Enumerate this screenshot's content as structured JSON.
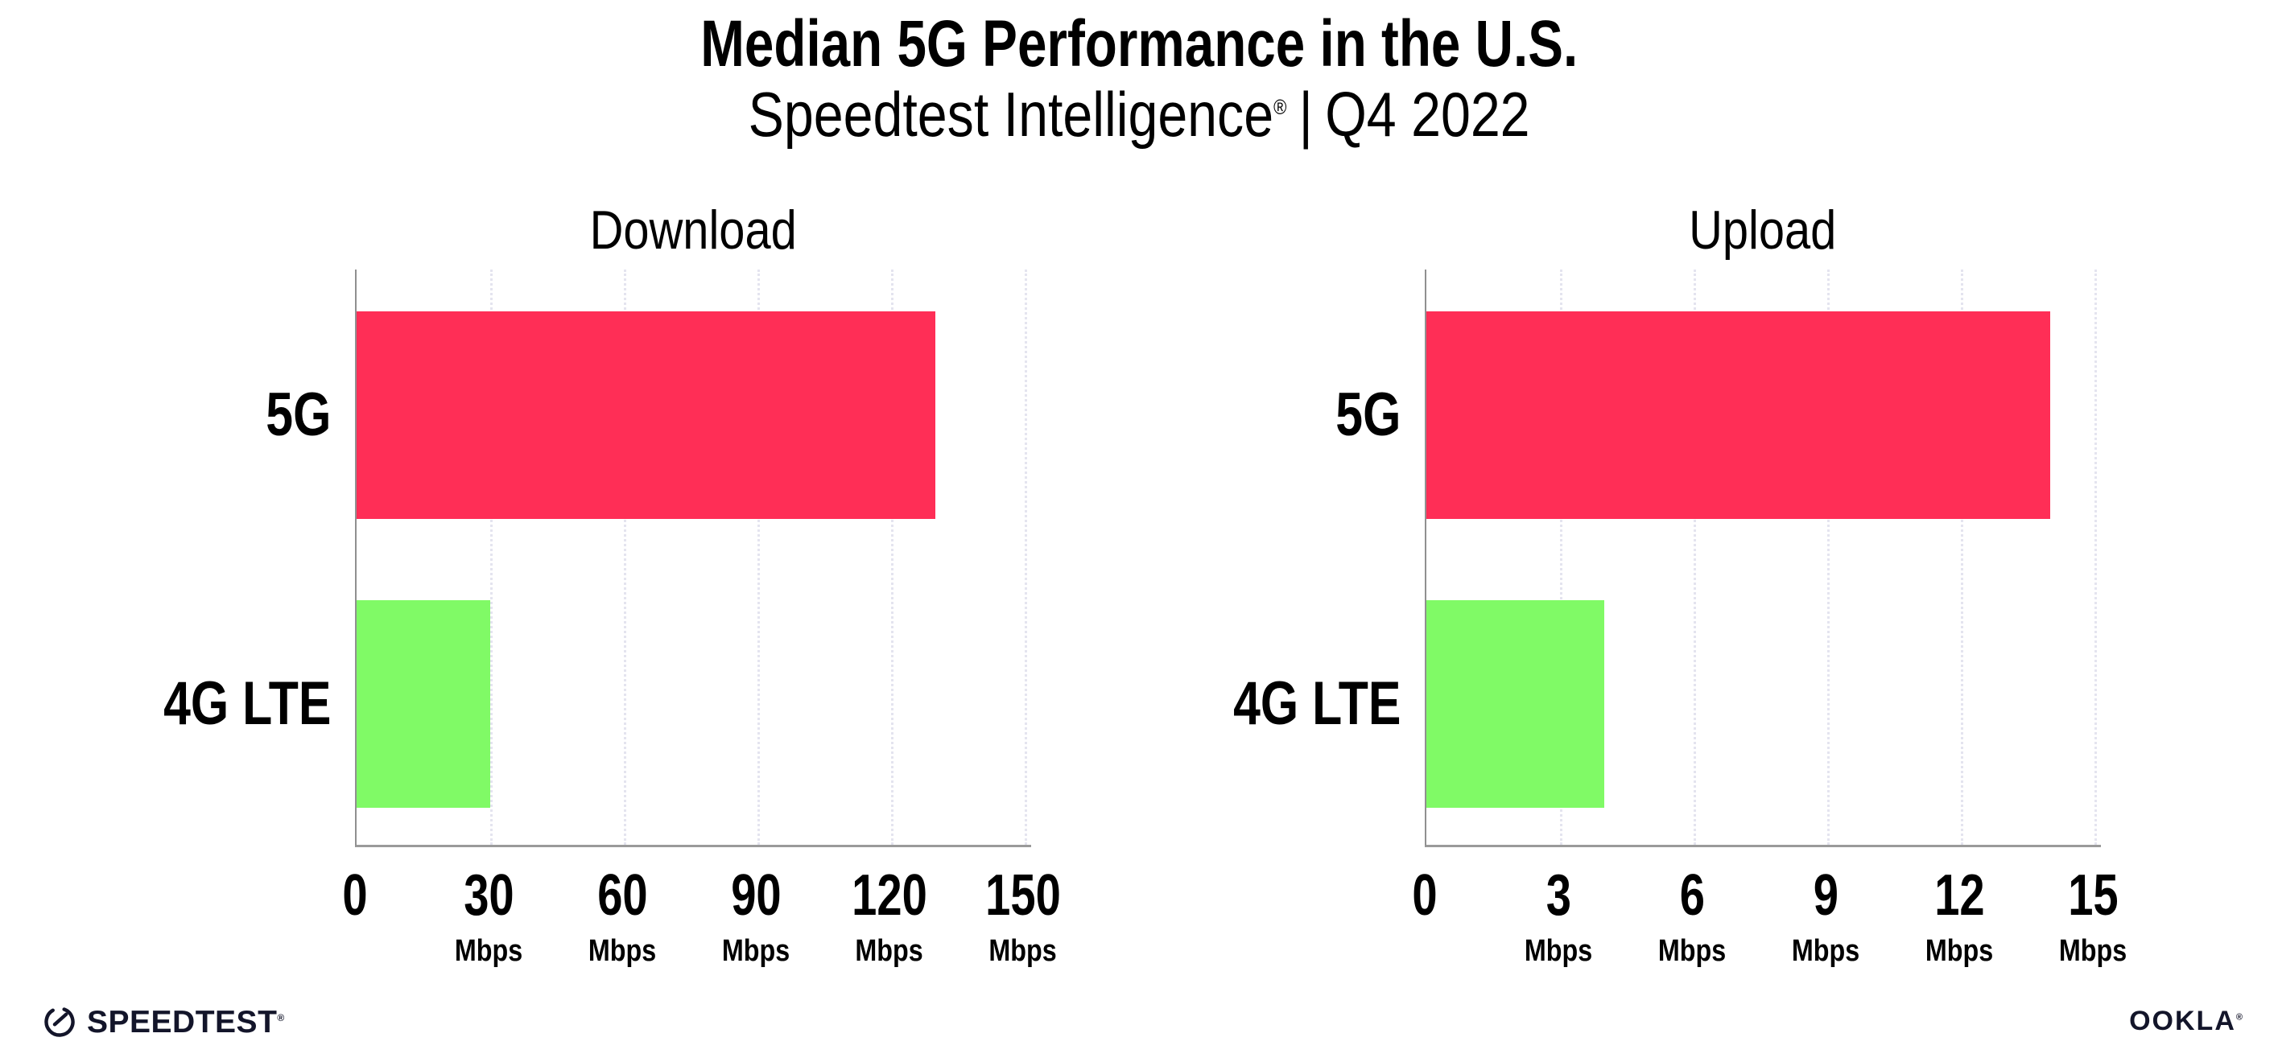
{
  "page": {
    "background": "#ffffff"
  },
  "header": {
    "title": "Median 5G Performance in the U.S.",
    "subtitle": {
      "brand": "Speedtest Intelligence",
      "registered": "®",
      "separator": "|",
      "period": "Q4 2022"
    }
  },
  "chart_data": [
    {
      "type": "bar",
      "orientation": "horizontal",
      "title": "Download",
      "categories": [
        "5G",
        "4G LTE"
      ],
      "values": [
        130,
        30
      ],
      "unit": "Mbps",
      "xlabel": "",
      "ylabel": "",
      "xlim": [
        0,
        150
      ],
      "xticks": [
        0,
        30,
        60,
        90,
        120,
        150
      ],
      "xtick_unit": "Mbps",
      "bar_colors": [
        "#FF2E56",
        "#80FA66"
      ],
      "grid": "vertical-dotted",
      "legend": "none"
    },
    {
      "type": "bar",
      "orientation": "horizontal",
      "title": "Upload",
      "categories": [
        "5G",
        "4G LTE"
      ],
      "values": [
        14,
        4
      ],
      "unit": "Mbps",
      "xlabel": "",
      "ylabel": "",
      "xlim": [
        0,
        15
      ],
      "xticks": [
        0,
        3,
        6,
        9,
        12,
        15
      ],
      "xtick_unit": "Mbps",
      "bar_colors": [
        "#FF2E56",
        "#80FA66"
      ],
      "grid": "vertical-dotted",
      "legend": "none"
    }
  ],
  "footer": {
    "speedtest": {
      "label": "SPEEDTEST",
      "mark": "®"
    },
    "ookla": {
      "label": "OOKLA",
      "mark": "®"
    }
  },
  "colors": {
    "bar_5g": "#FF2E56",
    "bar_4g_lte": "#80FA66",
    "axis": "#9a9a9a",
    "gridline": "#e4e4ef",
    "text": "#000000",
    "logo": "#13152a"
  }
}
